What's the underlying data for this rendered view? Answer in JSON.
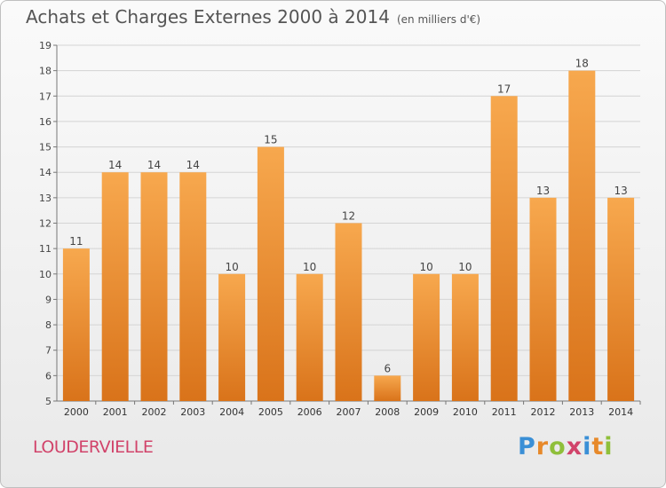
{
  "header": {
    "title": "Achats et Charges Externes 2000 à 2014",
    "unit": "(en milliers d'€)"
  },
  "footer": {
    "commune": "LOUDERVIELLE",
    "logo_letters": [
      {
        "char": "P",
        "color": "#3a8fd6"
      },
      {
        "char": "r",
        "color": "#e7892a"
      },
      {
        "char": "o",
        "color": "#8fbf3a"
      },
      {
        "char": "x",
        "color": "#d1436a"
      },
      {
        "char": "i",
        "color": "#3a8fd6"
      },
      {
        "char": "t",
        "color": "#e7892a"
      },
      {
        "char": "i",
        "color": "#8fbf3a"
      }
    ]
  },
  "chart_data": {
    "type": "bar",
    "title": "Achats et Charges Externes 2000 à 2014",
    "subtitle": "(en milliers d'€)",
    "categories": [
      "2000",
      "2001",
      "2002",
      "2003",
      "2004",
      "2005",
      "2006",
      "2007",
      "2008",
      "2009",
      "2010",
      "2011",
      "2012",
      "2013",
      "2014"
    ],
    "values": [
      11,
      14,
      14,
      14,
      10,
      15,
      10,
      12,
      6,
      10,
      10,
      17,
      13,
      18,
      13
    ],
    "ylim": [
      5,
      19
    ],
    "yticks": [
      5,
      6,
      7,
      8,
      9,
      10,
      11,
      12,
      13,
      14,
      15,
      16,
      17,
      18,
      19
    ],
    "grid": true,
    "legend": "none",
    "bar_color_top": "#f7a84e",
    "bar_color_bottom": "#d9731a"
  }
}
